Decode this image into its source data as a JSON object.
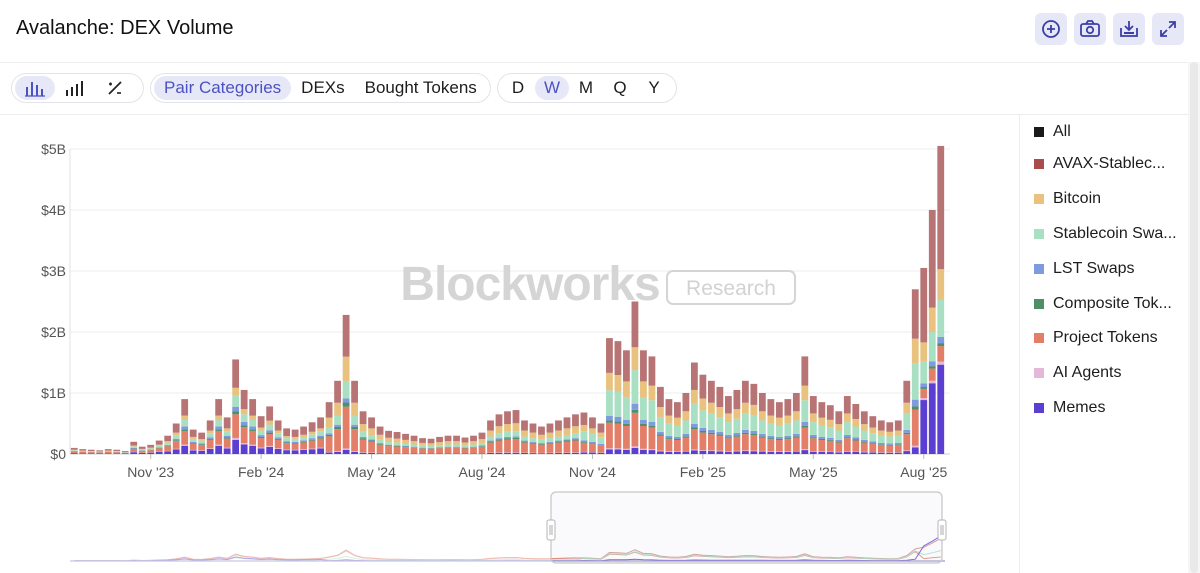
{
  "title": "Avalanche: DEX Volume",
  "actions": [
    {
      "name": "add-icon"
    },
    {
      "name": "camera-icon"
    },
    {
      "name": "download-icon"
    },
    {
      "name": "expand-icon"
    }
  ],
  "toolbar": {
    "chart_types": [
      {
        "name": "stacked-bar-icon",
        "active": true
      },
      {
        "name": "bar-chart-icon",
        "active": false
      },
      {
        "name": "percent-icon",
        "active": false
      }
    ],
    "breakdown_tabs": [
      "Pair Categories",
      "DEXs",
      "Bought Tokens"
    ],
    "breakdown_active": "Pair Categories",
    "intervals": [
      "D",
      "W",
      "M",
      "Q",
      "Y"
    ],
    "interval_active": "W"
  },
  "watermark": {
    "brand": "Blockworks",
    "tag": "Research"
  },
  "legend": [
    {
      "label": "All",
      "color": "#1a1a1a"
    },
    {
      "label": "AVAX-Stablec...",
      "color": "#a94c4c"
    },
    {
      "label": "Bitcoin",
      "color": "#e8c27e"
    },
    {
      "label": "Stablecoin Swa...",
      "color": "#a9dfc2"
    },
    {
      "label": "LST Swaps",
      "color": "#7d9bde"
    },
    {
      "label": "Composite Tok...",
      "color": "#4f8f68"
    },
    {
      "label": "Project Tokens",
      "color": "#e37f69"
    },
    {
      "label": "AI Agents",
      "color": "#e4b8d8"
    },
    {
      "label": "Memes",
      "color": "#5b3fd0"
    }
  ],
  "chart_data": {
    "type": "bar",
    "stacked": true,
    "title": "Avalanche: DEX Volume",
    "y_ticks": [
      "$0",
      "$1B",
      "$2B",
      "$3B",
      "$4B",
      "$5B"
    ],
    "ylim": [
      0,
      5
    ],
    "y_unit": "B USD",
    "x_ticks": [
      {
        "label": "Nov '23",
        "index": 9
      },
      {
        "label": "Feb '24",
        "index": 22
      },
      {
        "label": "May '24",
        "index": 35
      },
      {
        "label": "Aug '24",
        "index": 48
      },
      {
        "label": "Nov '24",
        "index": 61
      },
      {
        "label": "Feb '25",
        "index": 74
      },
      {
        "label": "May '25",
        "index": 87
      },
      {
        "label": "Aug '25",
        "index": 100
      }
    ],
    "grid": true,
    "legend_position": "right",
    "series_order": [
      "Memes",
      "AI Agents",
      "Project Tokens",
      "Composite Tok...",
      "LST Swaps",
      "Stablecoin Swa...",
      "Bitcoin",
      "AVAX-Stablec..."
    ],
    "totals": [
      0.1,
      0.08,
      0.07,
      0.06,
      0.08,
      0.07,
      0.05,
      0.2,
      0.12,
      0.15,
      0.22,
      0.3,
      0.5,
      0.9,
      0.4,
      0.35,
      0.55,
      0.9,
      0.6,
      1.55,
      1.05,
      0.9,
      0.62,
      0.78,
      0.55,
      0.42,
      0.4,
      0.45,
      0.52,
      0.6,
      0.85,
      1.2,
      2.28,
      1.2,
      0.7,
      0.6,
      0.45,
      0.38,
      0.36,
      0.33,
      0.3,
      0.26,
      0.25,
      0.28,
      0.3,
      0.3,
      0.27,
      0.3,
      0.35,
      0.55,
      0.65,
      0.7,
      0.72,
      0.55,
      0.5,
      0.45,
      0.5,
      0.55,
      0.6,
      0.65,
      0.68,
      0.6,
      0.5,
      1.9,
      1.85,
      1.7,
      2.5,
      1.7,
      1.6,
      1.1,
      0.9,
      0.85,
      1.0,
      1.5,
      1.3,
      1.2,
      1.1,
      0.95,
      1.05,
      1.2,
      1.15,
      1.0,
      0.9,
      0.85,
      0.9,
      1.0,
      1.6,
      0.95,
      0.85,
      0.8,
      0.7,
      0.95,
      0.82,
      0.7,
      0.62,
      0.55,
      0.52,
      0.55,
      1.2,
      2.7,
      3.05,
      4.0,
      5.05
    ],
    "shares": {
      "early": [
        0.15,
        0.02,
        0.25,
        0.03,
        0.05,
        0.12,
        0.08,
        0.3
      ],
      "mid": [
        0.03,
        0.01,
        0.3,
        0.03,
        0.03,
        0.12,
        0.18,
        0.3
      ],
      "late": [
        0.04,
        0.01,
        0.22,
        0.02,
        0.04,
        0.22,
        0.15,
        0.3
      ],
      "latest": [
        0.29,
        0.01,
        0.05,
        0.01,
        0.02,
        0.12,
        0.1,
        0.4
      ]
    },
    "series_colors": [
      "#5b3fd0",
      "#e4b8d8",
      "#e37f69",
      "#4f8f68",
      "#7d9bde",
      "#a9dfc2",
      "#e8c27e",
      "#b87474"
    ]
  }
}
